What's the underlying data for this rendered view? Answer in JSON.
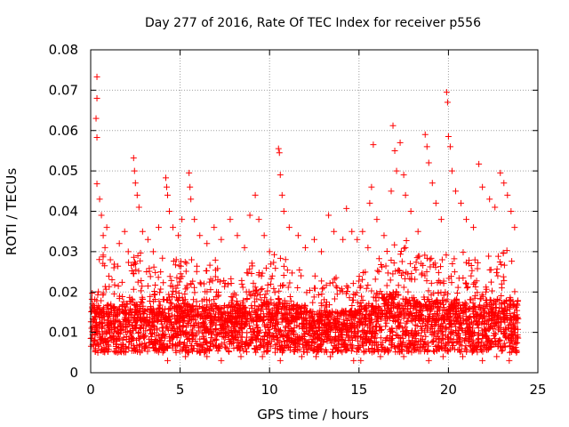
{
  "chart_data": {
    "type": "scatter",
    "title": "Day 277 of 2016, Rate Of TEC Index for receiver p556",
    "xlabel": "GPS time / hours",
    "ylabel": "ROTI / TECUs",
    "xlim": [
      0,
      25
    ],
    "ylim": [
      0,
      0.08
    ],
    "xticks": [
      0,
      5,
      10,
      15,
      20,
      25
    ],
    "xtick_labels": [
      "0",
      "5",
      "10",
      "15",
      "20",
      "25"
    ],
    "yticks": [
      0,
      0.01,
      0.02,
      0.03,
      0.04,
      0.05,
      0.06,
      0.07,
      0.08
    ],
    "ytick_labels": [
      "0",
      "0.01",
      "0.02",
      "0.03",
      "0.04",
      "0.05",
      "0.06",
      "0.07",
      "0.08"
    ],
    "grid": true,
    "marker": "+",
    "color": "#ff0000",
    "series": [
      {
        "name": "ROTI",
        "points": [
          [
            0.35,
            0.0733
          ],
          [
            0.35,
            0.068
          ],
          [
            0.3,
            0.063
          ],
          [
            0.35,
            0.0583
          ],
          [
            0.35,
            0.0468
          ],
          [
            0.5,
            0.043
          ],
          [
            0.6,
            0.039
          ],
          [
            0.7,
            0.034
          ],
          [
            0.8,
            0.031
          ],
          [
            0.9,
            0.036
          ],
          [
            1.1,
            0.028
          ],
          [
            1.3,
            0.026
          ],
          [
            1.6,
            0.032
          ],
          [
            1.9,
            0.035
          ],
          [
            2.1,
            0.03
          ],
          [
            2.4,
            0.0532
          ],
          [
            2.45,
            0.05
          ],
          [
            2.5,
            0.047
          ],
          [
            2.6,
            0.044
          ],
          [
            2.7,
            0.041
          ],
          [
            2.9,
            0.035
          ],
          [
            3.2,
            0.033
          ],
          [
            3.5,
            0.03
          ],
          [
            3.8,
            0.036
          ],
          [
            4.2,
            0.0483
          ],
          [
            4.25,
            0.046
          ],
          [
            4.3,
            0.044
          ],
          [
            4.4,
            0.04
          ],
          [
            4.6,
            0.036
          ],
          [
            4.9,
            0.034
          ],
          [
            5.1,
            0.038
          ],
          [
            5.5,
            0.0495
          ],
          [
            5.55,
            0.046
          ],
          [
            5.6,
            0.043
          ],
          [
            5.8,
            0.038
          ],
          [
            6.1,
            0.034
          ],
          [
            6.5,
            0.032
          ],
          [
            6.9,
            0.036
          ],
          [
            7.3,
            0.033
          ],
          [
            7.8,
            0.038
          ],
          [
            8.2,
            0.034
          ],
          [
            8.6,
            0.031
          ],
          [
            8.9,
            0.039
          ],
          [
            9.2,
            0.044
          ],
          [
            9.4,
            0.038
          ],
          [
            9.7,
            0.034
          ],
          [
            10.0,
            0.03
          ],
          [
            10.5,
            0.0555
          ],
          [
            10.55,
            0.0545
          ],
          [
            10.6,
            0.049
          ],
          [
            10.7,
            0.044
          ],
          [
            10.8,
            0.04
          ],
          [
            11.1,
            0.036
          ],
          [
            11.6,
            0.034
          ],
          [
            12.0,
            0.031
          ],
          [
            12.5,
            0.033
          ],
          [
            12.9,
            0.03
          ],
          [
            13.3,
            0.039
          ],
          [
            13.6,
            0.035
          ],
          [
            14.1,
            0.033
          ],
          [
            14.3,
            0.0407
          ],
          [
            14.6,
            0.035
          ],
          [
            14.9,
            0.033
          ],
          [
            15.2,
            0.035
          ],
          [
            15.5,
            0.031
          ],
          [
            15.8,
            0.0565
          ],
          [
            15.7,
            0.046
          ],
          [
            15.6,
            0.042
          ],
          [
            16.0,
            0.038
          ],
          [
            16.4,
            0.034
          ],
          [
            16.8,
            0.045
          ],
          [
            16.9,
            0.0612
          ],
          [
            17.0,
            0.055
          ],
          [
            17.1,
            0.05
          ],
          [
            17.3,
            0.057
          ],
          [
            17.5,
            0.049
          ],
          [
            17.6,
            0.044
          ],
          [
            17.9,
            0.04
          ],
          [
            18.3,
            0.035
          ],
          [
            18.7,
            0.059
          ],
          [
            18.8,
            0.056
          ],
          [
            18.9,
            0.052
          ],
          [
            19.1,
            0.047
          ],
          [
            19.3,
            0.042
          ],
          [
            19.6,
            0.038
          ],
          [
            19.9,
            0.0695
          ],
          [
            19.95,
            0.067
          ],
          [
            20.0,
            0.0585
          ],
          [
            20.1,
            0.056
          ],
          [
            20.2,
            0.05
          ],
          [
            20.4,
            0.045
          ],
          [
            20.7,
            0.042
          ],
          [
            21.0,
            0.038
          ],
          [
            21.4,
            0.036
          ],
          [
            21.7,
            0.0517
          ],
          [
            21.9,
            0.046
          ],
          [
            22.3,
            0.043
          ],
          [
            22.6,
            0.041
          ],
          [
            22.9,
            0.0495
          ],
          [
            23.1,
            0.047
          ],
          [
            23.3,
            0.044
          ],
          [
            23.5,
            0.04
          ],
          [
            23.7,
            0.036
          ],
          [
            0.4,
            0.005
          ],
          [
            1.5,
            0.005
          ],
          [
            3.0,
            0.006
          ],
          [
            4.3,
            0.003
          ],
          [
            5.3,
            0.004
          ],
          [
            6.5,
            0.004
          ],
          [
            7.3,
            0.003
          ],
          [
            8.4,
            0.004
          ],
          [
            9.6,
            0.004
          ],
          [
            10.6,
            0.003
          ],
          [
            11.8,
            0.004
          ],
          [
            12.6,
            0.004
          ],
          [
            13.4,
            0.004
          ],
          [
            14.7,
            0.003
          ],
          [
            15.1,
            0.003
          ],
          [
            16.2,
            0.004
          ],
          [
            17.5,
            0.004
          ],
          [
            18.9,
            0.003
          ],
          [
            19.7,
            0.004
          ],
          [
            20.8,
            0.004
          ],
          [
            21.9,
            0.003
          ],
          [
            22.7,
            0.004
          ],
          [
            23.4,
            0.003
          ],
          [
            23.8,
            0.005
          ]
        ]
      }
    ],
    "dense_band": [
      {
        "x_start": 0.0,
        "x_end": 1.0,
        "median": 0.012,
        "upper": 0.03
      },
      {
        "x_start": 1.0,
        "x_end": 2.0,
        "median": 0.012,
        "upper": 0.028
      },
      {
        "x_start": 2.0,
        "x_end": 3.0,
        "median": 0.013,
        "upper": 0.03
      },
      {
        "x_start": 3.0,
        "x_end": 4.0,
        "median": 0.012,
        "upper": 0.027
      },
      {
        "x_start": 4.0,
        "x_end": 5.0,
        "median": 0.013,
        "upper": 0.03
      },
      {
        "x_start": 5.0,
        "x_end": 6.0,
        "median": 0.013,
        "upper": 0.03
      },
      {
        "x_start": 6.0,
        "x_end": 7.0,
        "median": 0.012,
        "upper": 0.028
      },
      {
        "x_start": 7.0,
        "x_end": 8.0,
        "median": 0.012,
        "upper": 0.026
      },
      {
        "x_start": 8.0,
        "x_end": 9.0,
        "median": 0.012,
        "upper": 0.027
      },
      {
        "x_start": 9.0,
        "x_end": 10.0,
        "median": 0.013,
        "upper": 0.03
      },
      {
        "x_start": 10.0,
        "x_end": 11.0,
        "median": 0.013,
        "upper": 0.03
      },
      {
        "x_start": 11.0,
        "x_end": 12.0,
        "median": 0.012,
        "upper": 0.026
      },
      {
        "x_start": 12.0,
        "x_end": 13.0,
        "median": 0.011,
        "upper": 0.024
      },
      {
        "x_start": 13.0,
        "x_end": 14.0,
        "median": 0.011,
        "upper": 0.024
      },
      {
        "x_start": 14.0,
        "x_end": 15.0,
        "median": 0.011,
        "upper": 0.023
      },
      {
        "x_start": 15.0,
        "x_end": 16.0,
        "median": 0.012,
        "upper": 0.025
      },
      {
        "x_start": 16.0,
        "x_end": 17.0,
        "median": 0.014,
        "upper": 0.032
      },
      {
        "x_start": 17.0,
        "x_end": 18.0,
        "median": 0.014,
        "upper": 0.033
      },
      {
        "x_start": 18.0,
        "x_end": 19.0,
        "median": 0.013,
        "upper": 0.03
      },
      {
        "x_start": 19.0,
        "x_end": 20.0,
        "median": 0.013,
        "upper": 0.03
      },
      {
        "x_start": 20.0,
        "x_end": 21.0,
        "median": 0.013,
        "upper": 0.03
      },
      {
        "x_start": 21.0,
        "x_end": 22.0,
        "median": 0.012,
        "upper": 0.028
      },
      {
        "x_start": 22.0,
        "x_end": 23.0,
        "median": 0.013,
        "upper": 0.03
      },
      {
        "x_start": 23.0,
        "x_end": 23.9,
        "median": 0.013,
        "upper": 0.032
      }
    ]
  }
}
